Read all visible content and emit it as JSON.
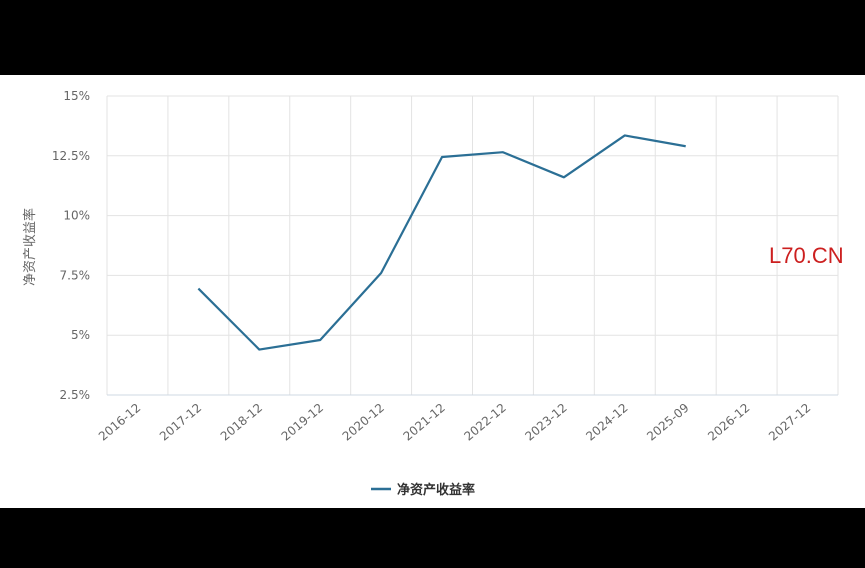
{
  "chart_data": {
    "type": "line",
    "title": "",
    "xlabel": "",
    "ylabel": "净资产收益率",
    "categories": [
      "2016-12",
      "2017-12",
      "2018-12",
      "2019-12",
      "2020-12",
      "2021-12",
      "2022-12",
      "2023-12",
      "2024-12",
      "2025-09",
      "2026-12",
      "2027-12"
    ],
    "series": [
      {
        "name": "净资产收益率",
        "values": [
          null,
          6.95,
          4.4,
          4.8,
          7.6,
          12.45,
          12.65,
          11.6,
          13.35,
          12.9,
          null,
          null
        ]
      }
    ],
    "y_ticks": [
      "2.5%",
      "5%",
      "7.5%",
      "10%",
      "12.5%",
      "15%"
    ],
    "ylim": [
      2.5,
      15
    ],
    "grid": true,
    "legend_position": "bottom-center",
    "colors": {
      "series": "#2b6f95",
      "grid": "#e3e3e3",
      "axis": "#cfd8e3"
    }
  },
  "watermark": "L70.CN"
}
